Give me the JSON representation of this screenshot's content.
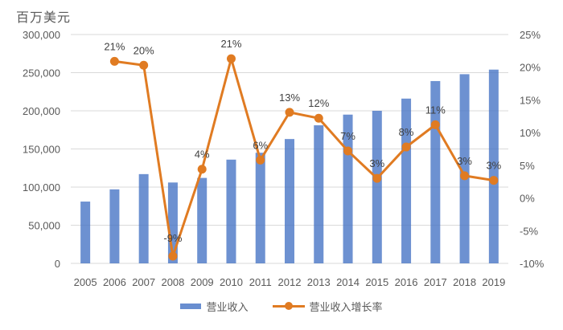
{
  "chart_data": {
    "type": "bar+line",
    "title": "",
    "unit_label": "百万美元",
    "categories": [
      "2005",
      "2006",
      "2007",
      "2008",
      "2009",
      "2010",
      "2011",
      "2012",
      "2013",
      "2014",
      "2015",
      "2016",
      "2017",
      "2018",
      "2019"
    ],
    "series": [
      {
        "name": "营业收入",
        "type": "bar",
        "axis": "left",
        "color": "#4472c4",
        "values": [
          81000,
          97000,
          117000,
          106000,
          112000,
          136000,
          145000,
          163000,
          181000,
          195000,
          200000,
          216000,
          239000,
          248000,
          254000
        ]
      },
      {
        "name": "营业收入增长率",
        "type": "line",
        "axis": "right",
        "color": "#e07b22",
        "values": [
          null,
          21,
          20,
          -9,
          4,
          21,
          6,
          13,
          12,
          7,
          3,
          8,
          11,
          3,
          3
        ],
        "point_values": [
          null,
          20.9,
          20.3,
          -8.9,
          4.4,
          21.3,
          5.8,
          13.1,
          12.2,
          7.2,
          3.0,
          7.8,
          11.2,
          3.4,
          2.7
        ],
        "data_labels": [
          "",
          "21%",
          "20%",
          "-9%",
          "4%",
          "21%",
          "6%",
          "13%",
          "12%",
          "7%",
          "3%",
          "8%",
          "11%",
          "3%",
          "3%"
        ]
      }
    ],
    "y_left": {
      "label": "百万美元",
      "min": 0,
      "max": 300000,
      "step": 50000,
      "ticks": [
        "0",
        "50,000",
        "100,000",
        "150,000",
        "200,000",
        "250,000",
        "300,000"
      ]
    },
    "y_right": {
      "min": -10,
      "max": 25,
      "step": 5,
      "ticks": [
        "-10%",
        "-5%",
        "0%",
        "5%",
        "10%",
        "15%",
        "20%",
        "25%"
      ]
    },
    "xlabel": "",
    "grid": true,
    "legend_position": "bottom"
  },
  "legend": {
    "bar_label": "营业收入",
    "line_label": "营业收入增长率"
  }
}
